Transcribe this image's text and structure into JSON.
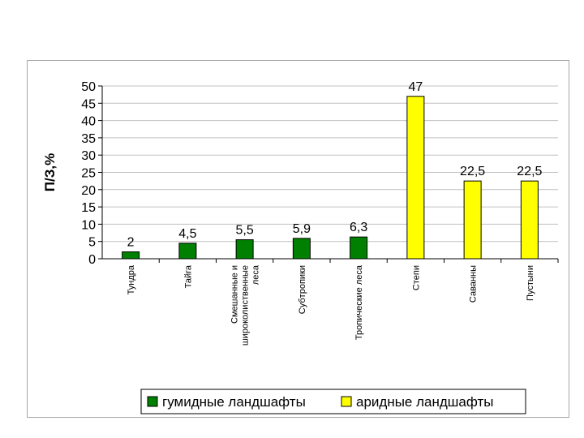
{
  "chart_data": {
    "type": "bar",
    "title": "",
    "xlabel": "",
    "ylabel": "П/З,%",
    "ylim": [
      0,
      50
    ],
    "yticks": [
      "0",
      "5",
      "10",
      "15",
      "20",
      "25",
      "30",
      "35",
      "40",
      "45",
      "50"
    ],
    "grid": true,
    "legend_position": "bottom",
    "categories": [
      [
        "Тундра"
      ],
      [
        "Тайга"
      ],
      [
        "Смешанные и",
        "широколиственные",
        "леса"
      ],
      [
        "Субтропики"
      ],
      [
        "Тропические леса"
      ],
      [
        "Степи"
      ],
      [
        "Саванны"
      ],
      [
        "Пустыни"
      ]
    ],
    "values": [
      2,
      4.5,
      5.5,
      5.9,
      6.3,
      47,
      22.5,
      22.5
    ],
    "data_labels": [
      "2",
      "4,5",
      "5,5",
      "5,9",
      "6,3",
      "47",
      "22,5",
      "22,5"
    ],
    "series_group": [
      0,
      0,
      0,
      0,
      0,
      1,
      1,
      1
    ],
    "legend": [
      {
        "name": "гумидные ландшафты",
        "color": "#008000"
      },
      {
        "name": "аридные ландшафты",
        "color": "#ffff00"
      }
    ]
  }
}
